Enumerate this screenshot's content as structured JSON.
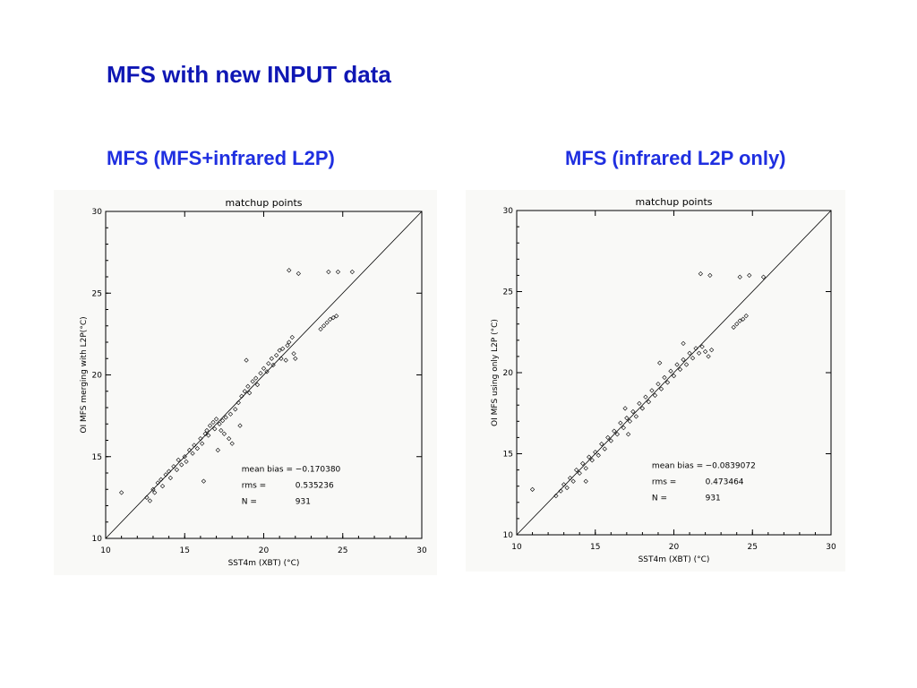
{
  "slide": {
    "title": "MFS with new INPUT data",
    "colors": {
      "title": "#0f17b4",
      "panel_title": "#1f2fe0",
      "plot_bg": "#f9f9f7"
    }
  },
  "panels": [
    {
      "heading": "MFS (MFS+infrared L2P)",
      "chart_data": {
        "type": "scatter",
        "title": "matchup points",
        "xlabel": "SST4m (XBT)    (°C)",
        "ylabel": "OI MFS merging with L2P(°C)",
        "xlim": [
          10,
          30
        ],
        "ylim": [
          10,
          30
        ],
        "xticks": [
          "10",
          "15",
          "20",
          "25",
          "30"
        ],
        "yticks": [
          "10",
          "15",
          "20",
          "25",
          "30"
        ],
        "reference_line": "y = x",
        "marker": "diamond",
        "stats": [
          {
            "label": "mean bias =",
            "value": "−0.170380"
          },
          {
            "label": "rms =",
            "value": "0.535236"
          },
          {
            "label": "N =",
            "value": "931"
          }
        ],
        "points": [
          [
            11,
            12.8
          ],
          [
            12.6,
            12.5
          ],
          [
            12.8,
            12.3
          ],
          [
            13,
            13
          ],
          [
            13.1,
            12.8
          ],
          [
            13.3,
            13.4
          ],
          [
            13.5,
            13.6
          ],
          [
            13.6,
            13.2
          ],
          [
            13.8,
            13.9
          ],
          [
            14,
            14.1
          ],
          [
            14.1,
            13.7
          ],
          [
            14.3,
            14.4
          ],
          [
            14.5,
            14.2
          ],
          [
            14.6,
            14.8
          ],
          [
            14.8,
            14.5
          ],
          [
            15,
            15
          ],
          [
            15.1,
            14.7
          ],
          [
            15.3,
            15.4
          ],
          [
            15.5,
            15.2
          ],
          [
            15.6,
            15.7
          ],
          [
            15.8,
            15.5
          ],
          [
            16,
            16.1
          ],
          [
            16.1,
            15.8
          ],
          [
            16.3,
            16.4
          ],
          [
            16.4,
            16.6
          ],
          [
            16.5,
            16.3
          ],
          [
            16.6,
            16.9
          ],
          [
            16.8,
            17.1
          ],
          [
            16.9,
            16.7
          ],
          [
            17,
            17.3
          ],
          [
            17.2,
            17.0
          ],
          [
            17.3,
            16.6
          ],
          [
            17.4,
            17.2
          ],
          [
            17.5,
            16.4
          ],
          [
            17.6,
            17.4
          ],
          [
            17.8,
            16.1
          ],
          [
            17.9,
            17.6
          ],
          [
            18,
            15.8
          ],
          [
            18.2,
            17.9
          ],
          [
            18.4,
            18.3
          ],
          [
            18.5,
            16.9
          ],
          [
            18.6,
            18.7
          ],
          [
            18.8,
            19.0
          ],
          [
            19,
            19.3
          ],
          [
            19.1,
            18.9
          ],
          [
            19.3,
            19.6
          ],
          [
            19.5,
            19.8
          ],
          [
            19.6,
            19.4
          ],
          [
            19.8,
            20.1
          ],
          [
            20,
            20.4
          ],
          [
            20.2,
            20.2
          ],
          [
            20.3,
            20.7
          ],
          [
            20.5,
            21
          ],
          [
            20.6,
            20.6
          ],
          [
            20.8,
            21.2
          ],
          [
            21,
            21.5
          ],
          [
            21.1,
            21.0
          ],
          [
            21.2,
            21.6
          ],
          [
            21.4,
            20.9
          ],
          [
            21.5,
            21.8
          ],
          [
            21.6,
            22.0
          ],
          [
            21.8,
            22.3
          ],
          [
            21.9,
            21.3
          ],
          [
            22,
            21.0
          ],
          [
            21.6,
            26.4
          ],
          [
            22.2,
            26.2
          ],
          [
            23.6,
            22.8
          ],
          [
            23.8,
            23.0
          ],
          [
            24,
            23.2
          ],
          [
            24.2,
            23.4
          ],
          [
            24.4,
            23.5
          ],
          [
            24.6,
            23.6
          ],
          [
            24.1,
            26.3
          ],
          [
            24.7,
            26.3
          ],
          [
            25.6,
            26.3
          ],
          [
            16.2,
            13.5
          ],
          [
            18.9,
            20.9
          ],
          [
            17.1,
            15.4
          ]
        ]
      }
    },
    {
      "heading": "MFS (infrared L2P only)",
      "chart_data": {
        "type": "scatter",
        "title": "matchup points",
        "xlabel": "SST4m (XBT)    (°C)",
        "ylabel": "OI MFS using only L2P (°C)",
        "xlim": [
          10,
          30
        ],
        "ylim": [
          10,
          30
        ],
        "xticks": [
          "10",
          "15",
          "20",
          "25",
          "30"
        ],
        "yticks": [
          "10",
          "15",
          "20",
          "25",
          "30"
        ],
        "reference_line": "y = x",
        "marker": "diamond",
        "stats": [
          {
            "label": "mean bias =",
            "value": "−0.0839072"
          },
          {
            "label": "rms =",
            "value": "0.473464"
          },
          {
            "label": "N =",
            "value": "931"
          }
        ],
        "points": [
          [
            11,
            12.8
          ],
          [
            12.5,
            12.4
          ],
          [
            12.8,
            12.7
          ],
          [
            13,
            13.1
          ],
          [
            13.2,
            12.9
          ],
          [
            13.4,
            13.5
          ],
          [
            13.6,
            13.3
          ],
          [
            13.8,
            14.0
          ],
          [
            14,
            13.8
          ],
          [
            14.2,
            14.4
          ],
          [
            14.4,
            14.1
          ],
          [
            14.6,
            14.8
          ],
          [
            14.8,
            14.6
          ],
          [
            15,
            15.1
          ],
          [
            15.2,
            14.9
          ],
          [
            15.4,
            15.6
          ],
          [
            15.6,
            15.3
          ],
          [
            15.8,
            16.0
          ],
          [
            16,
            15.8
          ],
          [
            16.2,
            16.4
          ],
          [
            16.4,
            16.2
          ],
          [
            16.6,
            16.9
          ],
          [
            16.8,
            16.6
          ],
          [
            17,
            17.2
          ],
          [
            17.2,
            17.0
          ],
          [
            17.4,
            17.6
          ],
          [
            17.6,
            17.3
          ],
          [
            17.8,
            18.1
          ],
          [
            18,
            17.8
          ],
          [
            18.2,
            18.5
          ],
          [
            18.4,
            18.2
          ],
          [
            18.6,
            18.9
          ],
          [
            18.8,
            18.6
          ],
          [
            19,
            19.3
          ],
          [
            19.2,
            19.0
          ],
          [
            19.4,
            19.7
          ],
          [
            19.6,
            19.4
          ],
          [
            19.8,
            20.1
          ],
          [
            20,
            19.8
          ],
          [
            20.2,
            20.5
          ],
          [
            20.4,
            20.2
          ],
          [
            20.6,
            20.8
          ],
          [
            20.8,
            20.5
          ],
          [
            21,
            21.2
          ],
          [
            21.2,
            20.9
          ],
          [
            21.4,
            21.5
          ],
          [
            21.6,
            21.2
          ],
          [
            21.8,
            21.6
          ],
          [
            22,
            21.3
          ],
          [
            22.2,
            21.0
          ],
          [
            22.4,
            21.4
          ],
          [
            21.7,
            26.1
          ],
          [
            22.3,
            26.0
          ],
          [
            23.8,
            22.8
          ],
          [
            24,
            23.0
          ],
          [
            24.2,
            23.2
          ],
          [
            24.4,
            23.3
          ],
          [
            24.6,
            23.5
          ],
          [
            24.2,
            25.9
          ],
          [
            24.8,
            26.0
          ],
          [
            25.7,
            25.9
          ],
          [
            14.4,
            13.3
          ],
          [
            17.1,
            16.2
          ],
          [
            19.1,
            20.6
          ],
          [
            20.6,
            21.8
          ],
          [
            16.9,
            17.8
          ]
        ]
      }
    }
  ]
}
